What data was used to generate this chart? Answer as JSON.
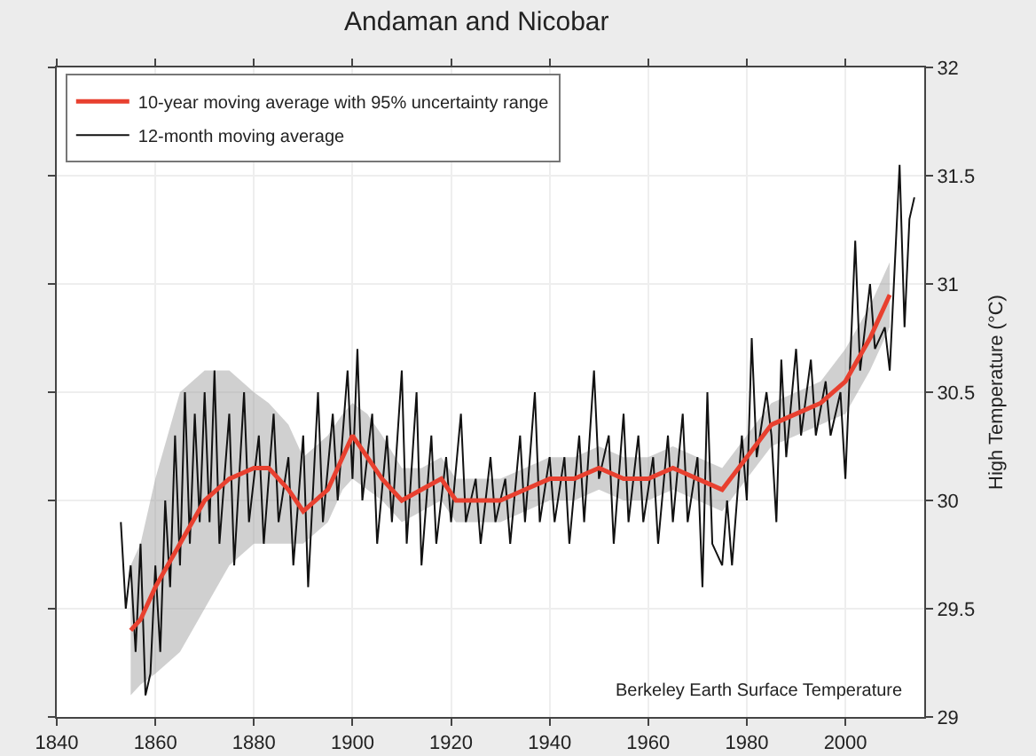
{
  "chart_data": {
    "type": "line",
    "title": "Andaman and Nicobar",
    "ylabel": "High Temperature (°C)",
    "xlim": [
      1840,
      2016
    ],
    "xticks": [
      1840,
      1860,
      1880,
      1900,
      1920,
      1940,
      1960,
      1980,
      2000
    ],
    "ylim": [
      29,
      32
    ],
    "yticks": [
      29,
      29.5,
      30,
      30.5,
      31,
      31.5,
      32
    ],
    "grid": true,
    "legend": "top left",
    "line_style": "solid",
    "marker": "none",
    "annotations": [
      {
        "text": "Berkeley Earth Surface Temperature"
      }
    ],
    "series": [
      {
        "name": "10-year moving average with 95% uncertainty range",
        "color": "#e8402f",
        "x": [
          1855,
          1857,
          1860,
          1865,
          1870,
          1875,
          1880,
          1883,
          1887,
          1890,
          1895,
          1898,
          1900,
          1903,
          1906,
          1910,
          1914,
          1918,
          1921,
          1925,
          1930,
          1935,
          1940,
          1945,
          1950,
          1955,
          1960,
          1965,
          1970,
          1975,
          1980,
          1985,
          1990,
          1995,
          2000,
          2005,
          2009
        ],
        "values": [
          29.4,
          29.45,
          29.6,
          29.8,
          30.0,
          30.1,
          30.15,
          30.15,
          30.05,
          29.95,
          30.05,
          30.2,
          30.3,
          30.2,
          30.1,
          30.0,
          30.05,
          30.1,
          30.0,
          30.0,
          30.0,
          30.05,
          30.1,
          30.1,
          30.15,
          30.1,
          30.1,
          30.15,
          30.1,
          30.05,
          30.2,
          30.35,
          30.4,
          30.45,
          30.55,
          30.75,
          30.95
        ],
        "lower": [
          29.1,
          29.15,
          29.2,
          29.3,
          29.5,
          29.7,
          29.8,
          29.8,
          29.8,
          29.8,
          29.9,
          30.05,
          30.1,
          30.05,
          30.0,
          29.9,
          29.95,
          30.0,
          29.9,
          29.9,
          29.9,
          29.95,
          30.0,
          30.0,
          30.05,
          30.0,
          30.0,
          30.05,
          30.0,
          29.95,
          30.1,
          30.25,
          30.3,
          30.35,
          30.4,
          30.6,
          30.8
        ],
        "upper": [
          29.7,
          29.8,
          30.1,
          30.5,
          30.6,
          30.6,
          30.5,
          30.45,
          30.35,
          30.2,
          30.3,
          30.4,
          30.45,
          30.4,
          30.3,
          30.15,
          30.15,
          30.2,
          30.1,
          30.1,
          30.1,
          30.15,
          30.2,
          30.2,
          30.25,
          30.2,
          30.2,
          30.25,
          30.2,
          30.15,
          30.3,
          30.45,
          30.5,
          30.55,
          30.7,
          30.9,
          31.1
        ]
      },
      {
        "name": "12-month moving average",
        "color": "#111111",
        "x": [
          1853,
          1854,
          1855,
          1856,
          1857,
          1858,
          1859,
          1860,
          1861,
          1862,
          1863,
          1864,
          1865,
          1866,
          1867,
          1868,
          1869,
          1870,
          1871,
          1872,
          1873,
          1875,
          1876,
          1878,
          1879,
          1881,
          1882,
          1884,
          1885,
          1887,
          1888,
          1890,
          1891,
          1893,
          1894,
          1896,
          1897,
          1899,
          1900,
          1901,
          1902,
          1904,
          1905,
          1907,
          1908,
          1910,
          1911,
          1913,
          1914,
          1916,
          1917,
          1919,
          1920,
          1922,
          1923,
          1925,
          1926,
          1928,
          1929,
          1931,
          1932,
          1934,
          1935,
          1937,
          1938,
          1940,
          1941,
          1943,
          1944,
          1946,
          1947,
          1949,
          1950,
          1952,
          1953,
          1955,
          1956,
          1958,
          1959,
          1961,
          1962,
          1964,
          1965,
          1967,
          1968,
          1970,
          1971,
          1972,
          1973,
          1975,
          1976,
          1977,
          1979,
          1980,
          1981,
          1982,
          1984,
          1985,
          1986,
          1987,
          1988,
          1990,
          1991,
          1993,
          1994,
          1996,
          1997,
          1999,
          2000,
          2002,
          2003,
          2005,
          2006,
          2008,
          2009,
          2011,
          2012,
          2013,
          2014
        ],
        "values": [
          29.9,
          29.5,
          29.7,
          29.3,
          29.8,
          29.1,
          29.2,
          29.7,
          29.3,
          30.0,
          29.6,
          30.3,
          29.7,
          30.5,
          29.8,
          30.4,
          29.9,
          30.5,
          29.9,
          30.6,
          29.8,
          30.4,
          29.7,
          30.5,
          29.9,
          30.3,
          29.8,
          30.4,
          29.9,
          30.2,
          29.7,
          30.3,
          29.6,
          30.5,
          29.9,
          30.4,
          30.0,
          30.6,
          30.1,
          30.7,
          30.0,
          30.4,
          29.8,
          30.3,
          29.9,
          30.6,
          29.8,
          30.5,
          29.7,
          30.3,
          29.8,
          30.2,
          29.9,
          30.4,
          29.9,
          30.1,
          29.8,
          30.2,
          29.9,
          30.1,
          29.8,
          30.3,
          29.9,
          30.5,
          29.9,
          30.2,
          29.9,
          30.2,
          29.8,
          30.3,
          29.9,
          30.6,
          30.1,
          30.3,
          29.8,
          30.4,
          29.9,
          30.3,
          29.9,
          30.2,
          29.8,
          30.3,
          29.9,
          30.4,
          29.9,
          30.2,
          29.6,
          30.5,
          29.8,
          29.7,
          30.0,
          29.7,
          30.3,
          30.0,
          30.75,
          30.2,
          30.5,
          30.3,
          29.9,
          30.65,
          30.2,
          30.7,
          30.3,
          30.65,
          30.3,
          30.55,
          30.3,
          30.5,
          30.1,
          31.2,
          30.6,
          31.0,
          30.7,
          30.8,
          30.6,
          31.55,
          30.8,
          31.3,
          31.4
        ]
      }
    ]
  }
}
